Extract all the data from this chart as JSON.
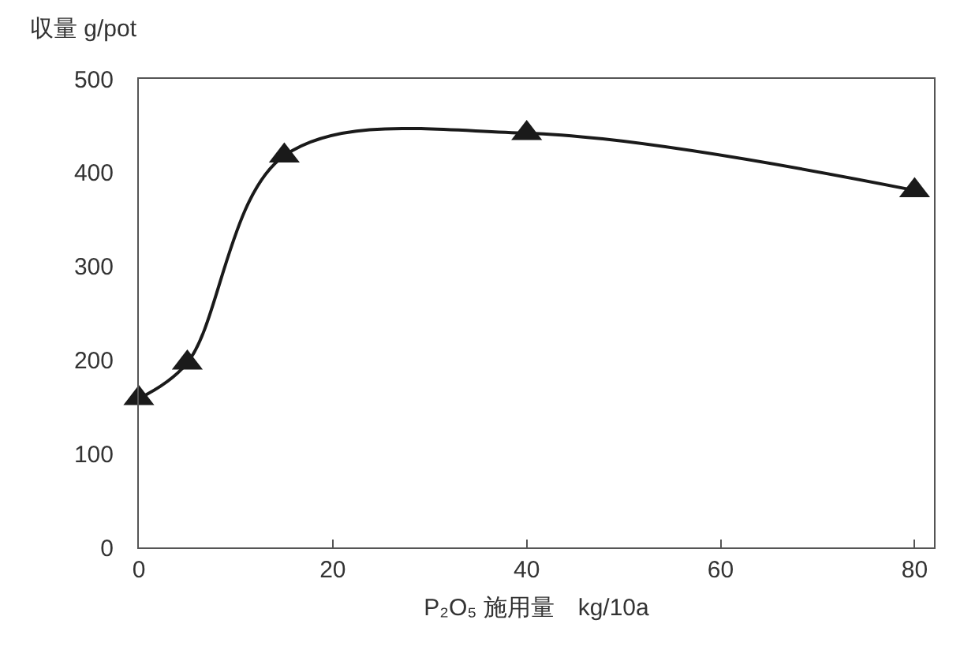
{
  "chart_data": {
    "type": "line",
    "xlabel": "P₂O₅ 施用量　kg/10a",
    "ylabel": "収量 g/pot",
    "x": [
      0,
      5,
      15,
      40,
      80
    ],
    "series": [
      {
        "color": "#1a1a1a",
        "values": [
          159,
          197,
          418,
          442,
          381
        ]
      }
    ],
    "xlim": [
      0,
      82
    ],
    "xticks": [
      0,
      20,
      40,
      60,
      80
    ],
    "ylim": [
      0,
      500
    ],
    "yticks": [
      0,
      100,
      200,
      300,
      400,
      500
    ],
    "grid": false,
    "marker": "triangle",
    "line_style": "solid"
  }
}
